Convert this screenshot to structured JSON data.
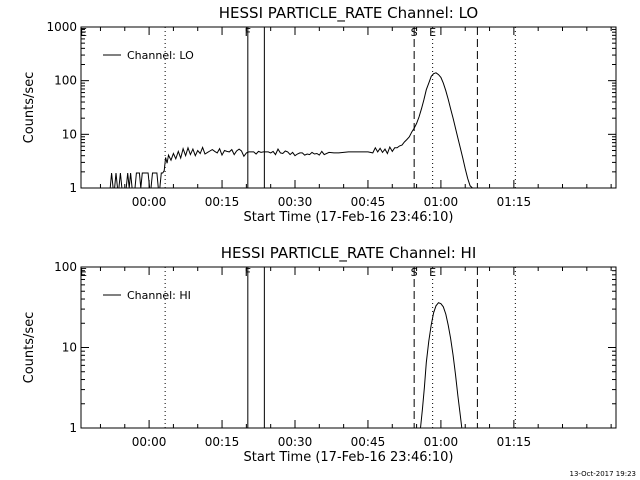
{
  "timestamp": "13-Oct-2017 19:23",
  "chart_data": [
    {
      "type": "line",
      "title": "HESSI PARTICLE_RATE Channel: LO",
      "xlabel": "Start Time (17-Feb-16 23:46:10)",
      "ylabel": "Counts/sec",
      "x_unit": "minutes after 17-Feb-16 23:46:10",
      "x_tick_labels": [
        "00:00",
        "00:15",
        "00:30",
        "00:45",
        "01:00",
        "01:15"
      ],
      "x_ticks": [
        14,
        29,
        44,
        59,
        74,
        89
      ],
      "y_scale": "log",
      "y_tick_labels": [
        "1",
        "10",
        "100",
        "1000"
      ],
      "y_ticks": [
        1,
        10,
        100,
        1000
      ],
      "xlim": [
        0,
        110
      ],
      "ylim": [
        1,
        1000
      ],
      "legend": {
        "position": "top-left",
        "entries": [
          "Channel: LO"
        ]
      },
      "markers": [
        {
          "label": "E",
          "x": 0.5,
          "style": "none"
        },
        {
          "x": 17.3,
          "style": "dotted"
        },
        {
          "label": "F",
          "x": 34.3,
          "style": "solid"
        },
        {
          "x": 37.7,
          "style": "solid"
        },
        {
          "label": "S",
          "x": 68.5,
          "style": "dashed"
        },
        {
          "label": "E",
          "x": 72.3,
          "style": "dotted"
        },
        {
          "x": 81.5,
          "style": "dashed"
        },
        {
          "x": 89.3,
          "style": "dotted"
        }
      ],
      "series": [
        {
          "name": "Channel: LO",
          "x": [
            6.0,
            6.3,
            6.6,
            6.9,
            7.2,
            7.5,
            7.8,
            8.1,
            8.4,
            8.7,
            9.0,
            9.3,
            9.6,
            9.9,
            10.2,
            10.5,
            10.8,
            11.1,
            11.4,
            11.7,
            12.0,
            12.3,
            12.6,
            12.9,
            13.2,
            13.5,
            13.8,
            14.1,
            14.4,
            14.7,
            15.0,
            15.3,
            15.6,
            15.9,
            16.2,
            16.5,
            16.8,
            17.1,
            17.4,
            17.7,
            18.0,
            18.5,
            19.0,
            19.5,
            20.0,
            20.5,
            21.0,
            21.5,
            22.0,
            22.5,
            23.0,
            23.5,
            24.0,
            24.5,
            25.0,
            25.5,
            26.0,
            26.5,
            27.0,
            27.5,
            28.0,
            28.5,
            29.0,
            29.5,
            30.0,
            30.5,
            31.0,
            31.5,
            32.0,
            32.5,
            33.0,
            33.5,
            34.0,
            34.5,
            35.0,
            35.5,
            36.0,
            36.5,
            37.0,
            37.5,
            38.0,
            38.5,
            39.0,
            39.5,
            40.0,
            40.5,
            41.0,
            41.5,
            42.0,
            42.5,
            43.0,
            43.5,
            44.0,
            44.5,
            45.0,
            45.5,
            46.0,
            46.5,
            47.0,
            47.5,
            48.0,
            48.5,
            49.0,
            49.5,
            50.0,
            51.0,
            52.0,
            53.0,
            54.0,
            55.0,
            56.0,
            57.0,
            58.0,
            59.0,
            60.0,
            60.5,
            61.0,
            61.5,
            62.0,
            62.5,
            63.0,
            63.5,
            64.0,
            64.5,
            65.0,
            65.5,
            66.0,
            66.5,
            67.0,
            67.5,
            68.0,
            68.5,
            69.0,
            69.5,
            70.0,
            70.5,
            71.0,
            71.5,
            72.0,
            72.5,
            73.0,
            73.5,
            74.0,
            74.5,
            75.0,
            75.5,
            76.0,
            76.5,
            77.0,
            77.5,
            78.0,
            78.5,
            79.0,
            79.5,
            80.0,
            80.5,
            81.0
          ],
          "y": [
            1.0,
            1.9,
            1.0,
            1.0,
            1.9,
            1.0,
            1.0,
            1.9,
            1.0,
            1.0,
            1.0,
            1.0,
            1.9,
            1.0,
            1.9,
            1.0,
            1.0,
            1.0,
            1.9,
            1.9,
            1.9,
            1.0,
            1.9,
            1.9,
            1.9,
            1.9,
            1.9,
            1.0,
            1.0,
            1.9,
            1.9,
            1.9,
            1.9,
            1.0,
            1.0,
            1.9,
            1.9,
            2.1,
            3.7,
            2.9,
            4.1,
            3.3,
            4.4,
            3.5,
            4.8,
            3.6,
            5.4,
            4.0,
            5.6,
            4.2,
            5.3,
            4.0,
            5.0,
            4.4,
            5.7,
            4.3,
            4.6,
            4.9,
            5.2,
            4.8,
            4.5,
            5.4,
            4.1,
            5.0,
            4.8,
            4.7,
            5.2,
            4.2,
            4.9,
            5.3,
            4.9,
            3.9,
            4.5,
            4.7,
            4.7,
            4.7,
            4.3,
            4.8,
            4.6,
            4.7,
            4.7,
            4.7,
            4.5,
            4.8,
            4.2,
            5.3,
            4.5,
            4.4,
            4.9,
            4.7,
            4.2,
            4.6,
            4.0,
            4.3,
            4.5,
            4.5,
            4.1,
            4.3,
            4.2,
            4.6,
            4.3,
            4.4,
            4.1,
            4.8,
            4.2,
            4.6,
            4.5,
            4.5,
            4.6,
            4.7,
            4.7,
            4.7,
            4.7,
            4.7,
            4.5,
            5.6,
            4.7,
            5.5,
            4.6,
            5.3,
            4.4,
            5.8,
            4.8,
            5.6,
            5.6,
            6.1,
            6.3,
            7.2,
            8.0,
            9.0,
            11.0,
            13.0,
            16.0,
            21.0,
            30.0,
            44.0,
            68.0,
            90.0,
            120.0,
            135.0,
            140.0,
            130.0,
            115.0,
            90.0,
            65.0,
            45.0,
            30.0,
            20.0,
            13.0,
            8.5,
            5.5,
            3.6,
            2.3,
            1.5,
            1.1,
            1.0,
            1.0
          ]
        }
      ]
    },
    {
      "type": "line",
      "title": "HESSI PARTICLE_RATE Channel: HI",
      "xlabel": "Start Time (17-Feb-16 23:46:10)",
      "ylabel": "Counts/sec",
      "x_unit": "minutes after 17-Feb-16 23:46:10",
      "x_tick_labels": [
        "00:00",
        "00:15",
        "00:30",
        "00:45",
        "01:00",
        "01:15"
      ],
      "x_ticks": [
        14,
        29,
        44,
        59,
        74,
        89
      ],
      "y_scale": "log",
      "y_tick_labels": [
        "1",
        "10",
        "100"
      ],
      "y_ticks": [
        1,
        10,
        100
      ],
      "xlim": [
        0,
        110
      ],
      "ylim": [
        1,
        100
      ],
      "legend": {
        "position": "top-left",
        "entries": [
          "Channel: HI"
        ]
      },
      "markers": [
        {
          "label": "E",
          "x": 0.5,
          "style": "none"
        },
        {
          "x": 17.3,
          "style": "dotted"
        },
        {
          "label": "F",
          "x": 34.3,
          "style": "solid"
        },
        {
          "x": 37.7,
          "style": "solid"
        },
        {
          "label": "S",
          "x": 68.5,
          "style": "dashed"
        },
        {
          "label": "E",
          "x": 72.3,
          "style": "dotted"
        },
        {
          "x": 81.5,
          "style": "dashed"
        },
        {
          "x": 89.3,
          "style": "dotted"
        }
      ],
      "series": [
        {
          "name": "Channel: HI",
          "x": [
            69.8,
            70.2,
            70.6,
            71.0,
            71.5,
            72.0,
            72.5,
            73.0,
            73.5,
            74.0,
            74.5,
            75.0,
            75.5,
            76.0,
            76.5,
            77.0,
            77.5,
            78.0,
            78.3
          ],
          "y": [
            1.0,
            1.7,
            3.2,
            6.5,
            12.0,
            19.0,
            27.0,
            33.0,
            36.0,
            35.0,
            32.0,
            26.0,
            19.0,
            13.0,
            8.0,
            4.6,
            2.5,
            1.4,
            1.0
          ]
        }
      ]
    }
  ]
}
